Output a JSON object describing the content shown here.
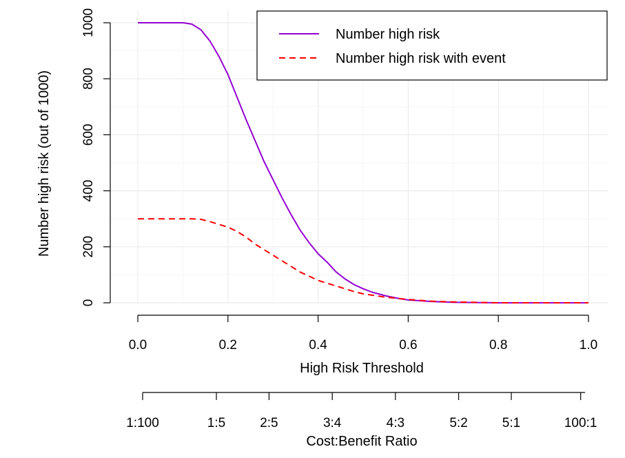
{
  "chart_data": {
    "type": "line",
    "xlabel": "High Risk Threshold",
    "ylabel": "Number high risk (out of 1000)",
    "xlim": [
      0,
      1
    ],
    "ylim": [
      0,
      1000
    ],
    "grid": true,
    "legend_position": "top-right",
    "x_ticks": [
      "0.0",
      "0.2",
      "0.4",
      "0.6",
      "0.8",
      "1.0"
    ],
    "y_ticks": [
      "0",
      "200",
      "400",
      "600",
      "800",
      "1000"
    ],
    "series": [
      {
        "name": "Number high risk",
        "color": "#9400D3",
        "style": "solid",
        "x": [
          0.0,
          0.05,
          0.1,
          0.12,
          0.14,
          0.16,
          0.18,
          0.2,
          0.22,
          0.24,
          0.26,
          0.28,
          0.3,
          0.32,
          0.34,
          0.36,
          0.38,
          0.4,
          0.42,
          0.44,
          0.46,
          0.48,
          0.5,
          0.52,
          0.55,
          0.58,
          0.6,
          0.65,
          0.7,
          0.75,
          0.8,
          0.9,
          1.0
        ],
        "y": [
          1000,
          1000,
          1000,
          995,
          975,
          935,
          880,
          815,
          735,
          655,
          580,
          505,
          440,
          375,
          315,
          260,
          215,
          175,
          145,
          110,
          85,
          65,
          50,
          38,
          25,
          15,
          10,
          5,
          2,
          1,
          0,
          0,
          0
        ]
      },
      {
        "name": "Number high risk with event",
        "color": "#FF0000",
        "style": "dashed",
        "x": [
          0.0,
          0.05,
          0.1,
          0.12,
          0.14,
          0.16,
          0.18,
          0.2,
          0.22,
          0.24,
          0.26,
          0.28,
          0.3,
          0.32,
          0.34,
          0.36,
          0.38,
          0.4,
          0.42,
          0.44,
          0.46,
          0.48,
          0.5,
          0.55,
          0.6,
          0.65,
          0.7,
          0.8,
          0.9,
          1.0
        ],
        "y": [
          300,
          300,
          300,
          300,
          298,
          290,
          280,
          270,
          255,
          235,
          210,
          190,
          170,
          150,
          130,
          110,
          95,
          80,
          70,
          60,
          50,
          40,
          32,
          20,
          12,
          6,
          3,
          0,
          0,
          0
        ]
      }
    ],
    "secondary_axis": {
      "label": "Cost:Benefit Ratio",
      "ticks": [
        {
          "x": 0.0,
          "label": "1:100"
        },
        {
          "x": 0.1667,
          "label": "1:5"
        },
        {
          "x": 0.2857,
          "label": "2:5"
        },
        {
          "x": 0.4286,
          "label": "3:4"
        },
        {
          "x": 0.5714,
          "label": "4:3"
        },
        {
          "x": 0.7143,
          "label": "5:2"
        },
        {
          "x": 0.8333,
          "label": "5:1"
        },
        {
          "x": 0.9901,
          "label": "100:1"
        }
      ]
    }
  }
}
